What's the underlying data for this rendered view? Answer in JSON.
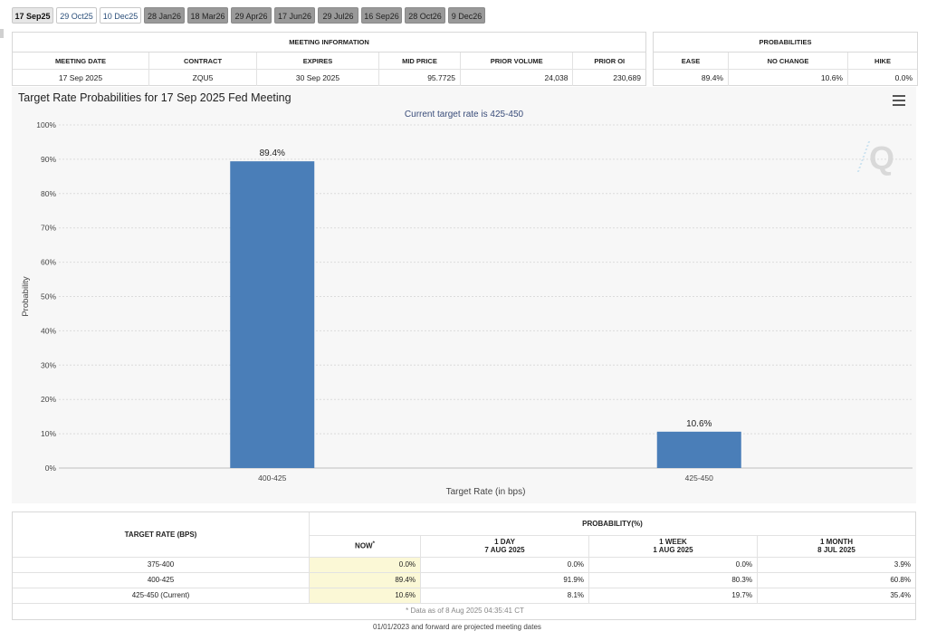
{
  "tabs": [
    {
      "label": "17 Sep25",
      "style": "active"
    },
    {
      "label": "29 Oct25",
      "style": "light"
    },
    {
      "label": "10 Dec25",
      "style": "light"
    },
    {
      "label": "28 Jan26",
      "style": "dark"
    },
    {
      "label": "18 Mar26",
      "style": "dark"
    },
    {
      "label": "29 Apr26",
      "style": "dark"
    },
    {
      "label": "17 Jun26",
      "style": "dark"
    },
    {
      "label": "29 Jul26",
      "style": "dark"
    },
    {
      "label": "16 Sep26",
      "style": "dark"
    },
    {
      "label": "28 Oct26",
      "style": "dark"
    },
    {
      "label": "9 Dec26",
      "style": "dark"
    }
  ],
  "meeting_info": {
    "title": "MEETING INFORMATION",
    "headers": [
      "MEETING DATE",
      "CONTRACT",
      "EXPIRES",
      "MID PRICE",
      "PRIOR VOLUME",
      "PRIOR OI"
    ],
    "values": [
      "17 Sep 2025",
      "ZQU5",
      "30 Sep 2025",
      "95.7725",
      "24,038",
      "230,689"
    ]
  },
  "probabilities": {
    "title": "PROBABILITIES",
    "headers": [
      "EASE",
      "NO CHANGE",
      "HIKE"
    ],
    "values": [
      "89.4%",
      "10.6%",
      "0.0%"
    ]
  },
  "chart_data": {
    "type": "bar",
    "title": "Target Rate Probabilities for 17 Sep 2025 Fed Meeting",
    "subtitle": "Current target rate is 425-450",
    "categories": [
      "400-425",
      "425-450"
    ],
    "values": [
      89.4,
      10.6
    ],
    "data_labels": [
      "89.4%",
      "10.6%"
    ],
    "xlabel": "Target Rate (in bps)",
    "ylabel": "Probability",
    "ylim": [
      0,
      100
    ],
    "yticks": [
      "0%",
      "10%",
      "20%",
      "30%",
      "40%",
      "50%",
      "60%",
      "70%",
      "80%",
      "90%",
      "100%"
    ],
    "grid": true,
    "bar_color": "#4a7eb8",
    "watermark": "Q"
  },
  "prob_table": {
    "col_target": "TARGET RATE (BPS)",
    "col_group": "PROBABILITY(%)",
    "subheaders": [
      {
        "line1": "NOW",
        "mark": "*",
        "line2": ""
      },
      {
        "line1": "1 DAY",
        "line2": "7 AUG 2025"
      },
      {
        "line1": "1 WEEK",
        "line2": "1 AUG 2025"
      },
      {
        "line1": "1 MONTH",
        "line2": "8 JUL 2025"
      }
    ],
    "rows": [
      {
        "rate": "375-400",
        "now": "0.0%",
        "day": "0.0%",
        "week": "0.0%",
        "month": "3.9%"
      },
      {
        "rate": "400-425",
        "now": "89.4%",
        "day": "91.9%",
        "week": "80.3%",
        "month": "60.8%"
      },
      {
        "rate": "425-450 (Current)",
        "now": "10.6%",
        "day": "8.1%",
        "week": "19.7%",
        "month": "35.4%"
      }
    ],
    "note": "* Data as of 8 Aug 2025 04:35:41 CT"
  },
  "cut_text": "01/01/2023 and forward are projected meeting dates"
}
